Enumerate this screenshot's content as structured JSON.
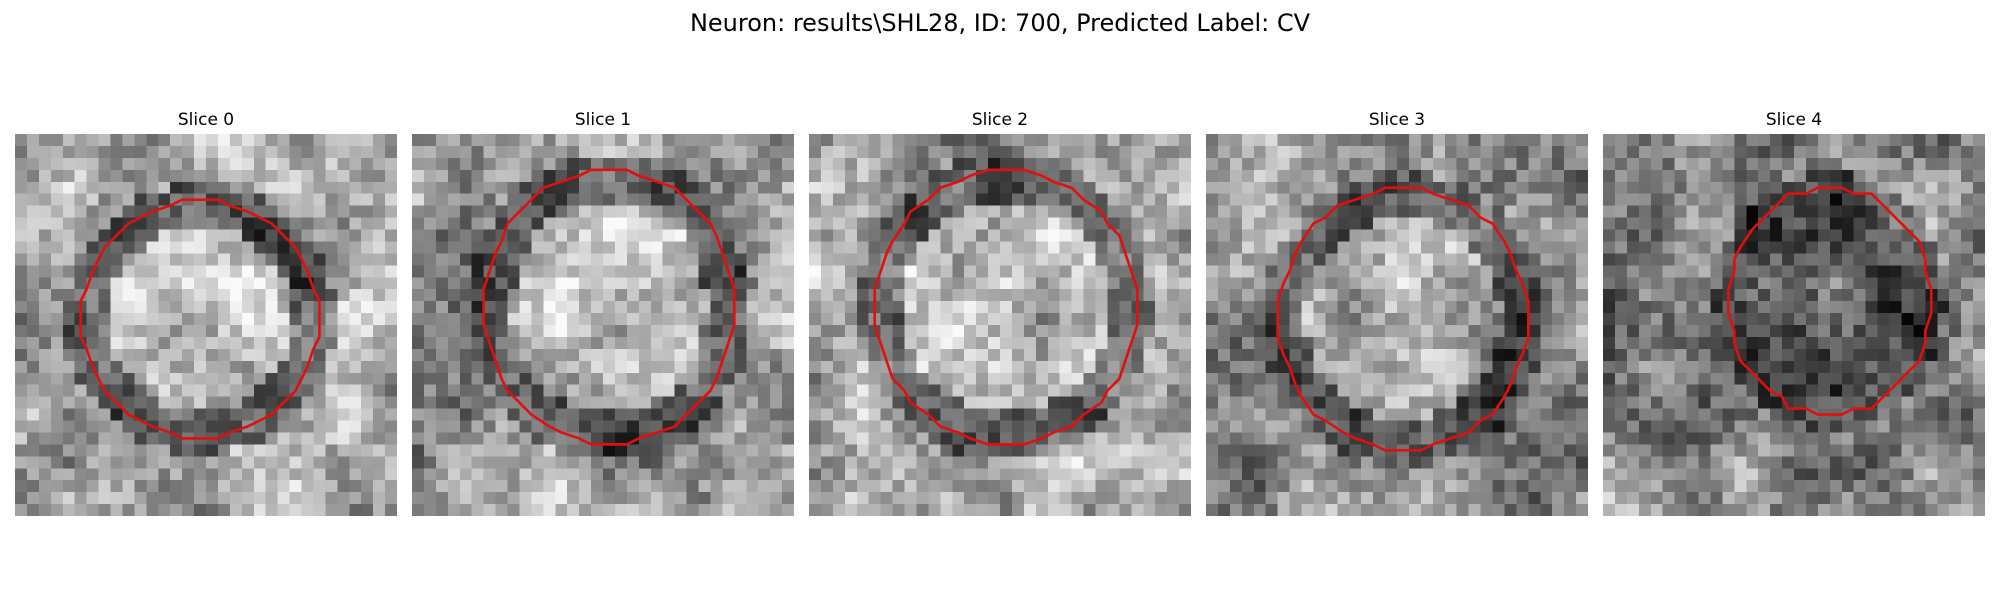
{
  "figure": {
    "title": "Neuron: results\\SHL28, ID: 700, Predicted Label: CV",
    "contour_color": "#e01010",
    "colormap": "gray",
    "grid_size": 32
  },
  "slices": [
    {
      "title": "Slice 0",
      "seed": 11,
      "inner_brightness": 0.72,
      "ring_darkness": 0.38,
      "outer_brightness": 0.7,
      "contour": {
        "cx": 15.5,
        "cy": 15.5,
        "rx": 10.0,
        "ry": 10.0,
        "sides": 12
      }
    },
    {
      "title": "Slice 1",
      "seed": 23,
      "inner_brightness": 0.72,
      "ring_darkness": 0.4,
      "outer_brightness": 0.62,
      "contour": {
        "cx": 16.5,
        "cy": 14.5,
        "rx": 10.5,
        "ry": 11.5,
        "sides": 12
      }
    },
    {
      "title": "Slice 2",
      "seed": 37,
      "inner_brightness": 0.76,
      "ring_darkness": 0.42,
      "outer_brightness": 0.66,
      "contour": {
        "cx": 16.5,
        "cy": 14.5,
        "rx": 11.0,
        "ry": 11.5,
        "sides": 12
      }
    },
    {
      "title": "Slice 3",
      "seed": 51,
      "inner_brightness": 0.66,
      "ring_darkness": 0.35,
      "outer_brightness": 0.55,
      "contour": {
        "cx": 16.5,
        "cy": 15.5,
        "rx": 10.5,
        "ry": 11.0,
        "sides": 12
      }
    },
    {
      "title": "Slice 4",
      "seed": 67,
      "inner_brightness": 0.38,
      "ring_darkness": 0.3,
      "outer_brightness": 0.55,
      "contour": {
        "cx": 19.0,
        "cy": 14.0,
        "rx": 8.5,
        "ry": 9.5,
        "sides": 12
      }
    }
  ]
}
